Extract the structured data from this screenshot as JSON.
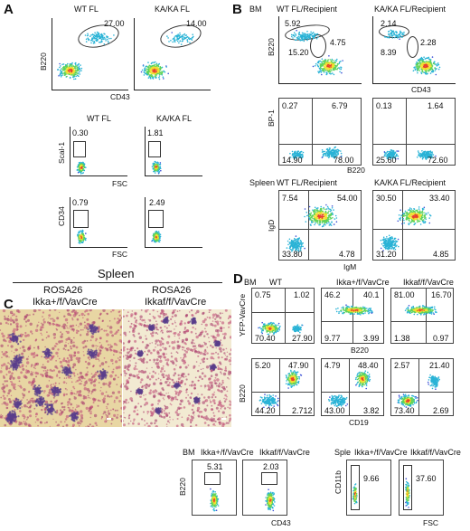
{
  "panels": {
    "A": {
      "letter": "A",
      "top": {
        "titles": [
          "WT FL",
          "KA/KA FL"
        ],
        "values": [
          "27.00",
          "14.00"
        ],
        "yaxis": "B220",
        "xaxis": "CD43"
      },
      "mid": {
        "titles": [
          "WT FL",
          "KA/KA FL"
        ],
        "values": [
          "0.30",
          "1.81"
        ],
        "yaxis": "Scal-1",
        "xaxis": "FSC"
      },
      "bot": {
        "values": [
          "0.79",
          "2.49"
        ],
        "yaxis": "CD34",
        "xaxis": "FSC"
      }
    },
    "B": {
      "letter": "B",
      "top": {
        "prefix": "BM",
        "titles": [
          "WT FL/Recipient",
          "KA/KA FL/Recipient"
        ],
        "left_values": [
          "5.92",
          "4.75",
          "15.20"
        ],
        "right_values": [
          "2.14",
          "2.28",
          "8.39"
        ],
        "yaxis": "B220",
        "xaxis": "CD43"
      },
      "mid": {
        "left_values": [
          "0.27",
          "6.79",
          "14.90",
          "78.00"
        ],
        "right_values": [
          "0.13",
          "1.64",
          "25.60",
          "72.60"
        ],
        "yaxis": "BP-1",
        "xaxis": "B220"
      },
      "bot": {
        "prefix": "Spleen",
        "titles": [
          "WT FL/Recipient",
          "KA/KA FL/Recipient"
        ],
        "left_values": [
          "7.54",
          "54.00",
          "33.80",
          "4.78"
        ],
        "right_values": [
          "30.50",
          "33.40",
          "31.20",
          "4.85"
        ],
        "yaxis": "IgD",
        "xaxis": "IgM"
      }
    },
    "C": {
      "letter": "C",
      "title": "Spleen",
      "left_label_1": "ROSA26",
      "left_label_2": "Ikka+/f/VavCre",
      "right_label_1": "ROSA26",
      "right_label_2": "Ikkaf/f/VavCre"
    },
    "D": {
      "letter": "D",
      "top": {
        "prefix": "BM",
        "titles": [
          "WT",
          "Ikka+/f/VavCre",
          "Ikkaf/f/VavCre"
        ],
        "v1": [
          "0.75",
          "1.02",
          "70.40",
          "27.90"
        ],
        "v2": [
          "46.2",
          "40.1",
          "9.77",
          "3.99"
        ],
        "v3": [
          "81.00",
          "16.70",
          "1.38",
          "0.97"
        ],
        "yaxis": "YFP-VavCre",
        "xaxis": "B220"
      },
      "mid": {
        "v1": [
          "5.20",
          "47.90",
          "44.20",
          "2.712"
        ],
        "v2": [
          "4.79",
          "48.40",
          "43.00",
          "3.82"
        ],
        "v3": [
          "2.57",
          "21.40",
          "73.40",
          "2.69"
        ],
        "yaxis": "B220",
        "xaxis": "CD19"
      },
      "bot_left": {
        "prefix": "BM",
        "titles": [
          "Ikka+/f/VavCre",
          "Ikkaf/f/VavCre"
        ],
        "values": [
          "5.31",
          "2.03"
        ],
        "yaxis": "B220",
        "xaxis": "CD43"
      },
      "bot_right": {
        "prefix": "Sple",
        "titles": [
          "Ikka+/f/VavCre",
          "Ikkaf/f/VavCre"
        ],
        "values": [
          "9.66",
          "37.60"
        ],
        "yaxis": "CD11b",
        "xaxis": "FSC"
      }
    }
  }
}
